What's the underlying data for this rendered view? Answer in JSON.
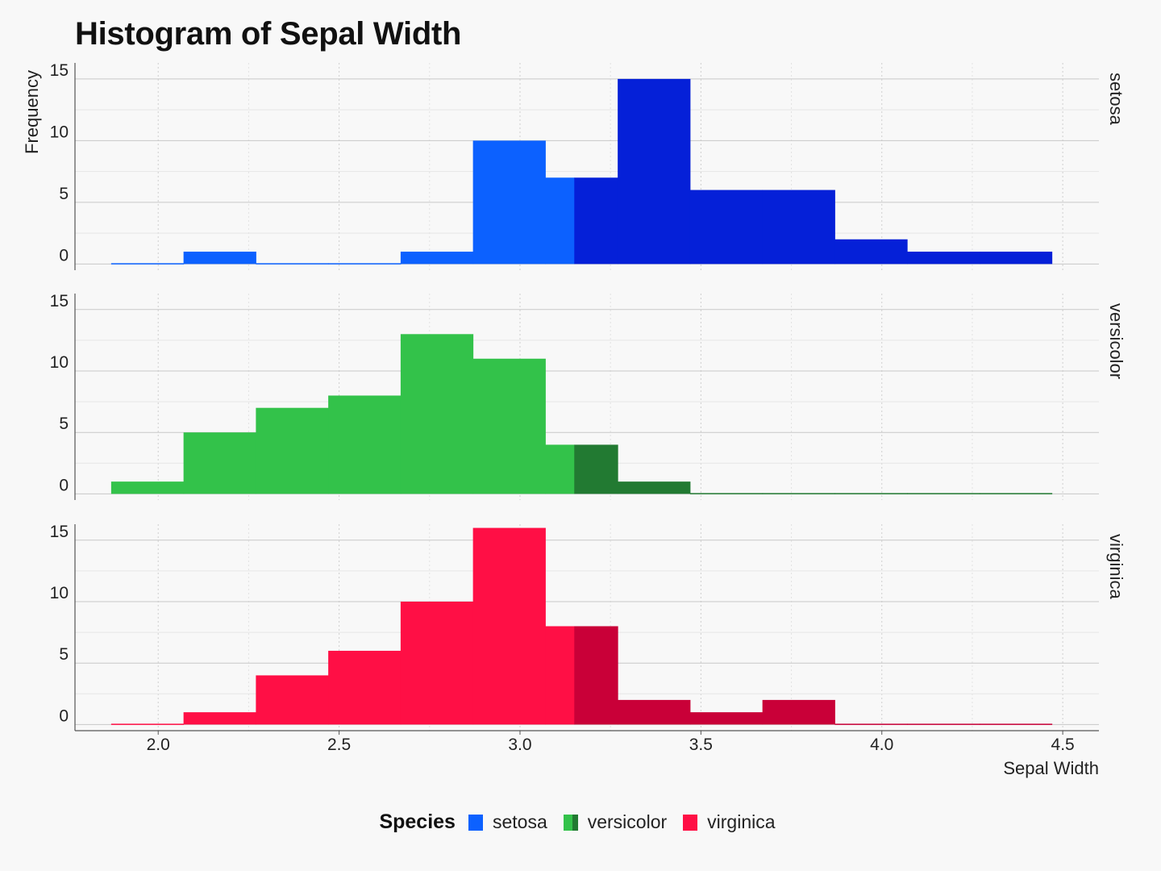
{
  "chart_data": {
    "type": "histogram",
    "title": "Histogram of Sepal Width",
    "xlabel": "Sepal Width",
    "ylabel": "Frequency",
    "x_ticks": [
      2.0,
      2.5,
      3.0,
      3.5,
      4.0,
      4.5
    ],
    "x_tick_labels": [
      "2.0",
      "2.5",
      "3.0",
      "3.5",
      "4.0",
      "4.5"
    ],
    "xlim": [
      1.77,
      4.6
    ],
    "y_ticks": [
      0,
      5,
      10,
      15
    ],
    "y_tick_labels": [
      "0",
      "5",
      "10",
      "15"
    ],
    "ylim": [
      -0.5,
      16.3
    ],
    "grid": true,
    "highlight_threshold": 3.15,
    "bin_edges": [
      1.87,
      2.07,
      2.27,
      2.47,
      2.67,
      2.87,
      3.07,
      3.27,
      3.47,
      3.67,
      3.87,
      4.07,
      4.27,
      4.47
    ],
    "legend": {
      "title": "Species",
      "position": "bottom"
    },
    "series": [
      {
        "name": "setosa",
        "facet_label": "setosa",
        "color": "#0c61ff",
        "highlight_color": "#0520d8",
        "values": [
          0,
          1,
          0,
          0,
          1,
          10,
          7,
          15,
          6,
          6,
          2,
          1,
          1
        ]
      },
      {
        "name": "versicolor",
        "facet_label": "versicolor",
        "color": "#33c24a",
        "highlight_color": "#227a32",
        "values": [
          1,
          5,
          7,
          8,
          13,
          11,
          4,
          1,
          0,
          0,
          0,
          0,
          0
        ]
      },
      {
        "name": "virginica",
        "facet_label": "virginica",
        "color": "#ff0f45",
        "highlight_color": "#c90038",
        "values": [
          0,
          1,
          4,
          6,
          10,
          16,
          8,
          2,
          1,
          2,
          0,
          0,
          0
        ]
      }
    ]
  }
}
